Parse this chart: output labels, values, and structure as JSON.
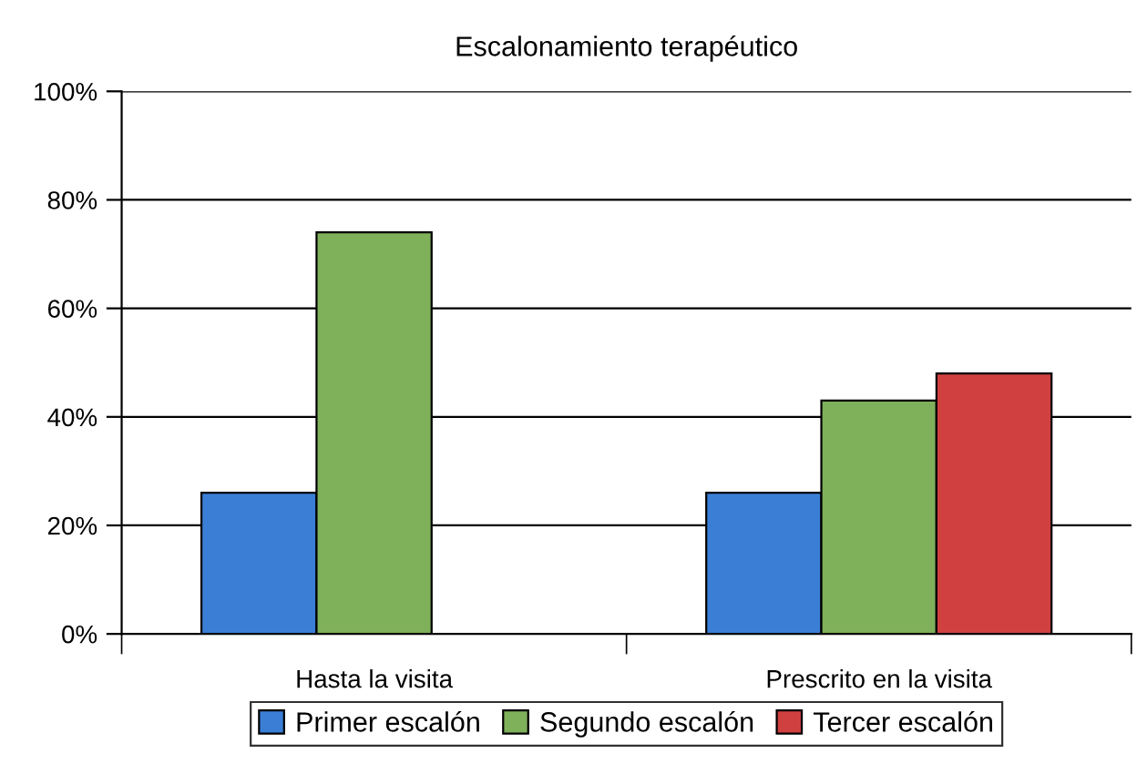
{
  "chart_data": {
    "type": "bar",
    "title": "Escalonamiento terapéutico",
    "categories": [
      "Hasta la visita",
      "Prescrito en la visita"
    ],
    "series": [
      {
        "name": "Primer escalón",
        "color": "#3a7fd5",
        "values": [
          26,
          26
        ]
      },
      {
        "name": "Segundo escalón",
        "color": "#7fb05a",
        "values": [
          74,
          43
        ]
      },
      {
        "name": "Tercer escalón",
        "color": "#d04040",
        "values": [
          null,
          48
        ]
      }
    ],
    "ylim": [
      0,
      100
    ],
    "yticks": [
      {
        "value": 0,
        "label": "0%"
      },
      {
        "value": 20,
        "label": "20%"
      },
      {
        "value": 40,
        "label": "40%"
      },
      {
        "value": 60,
        "label": "60%"
      },
      {
        "value": 80,
        "label": "80%"
      },
      {
        "value": 100,
        "label": "100%"
      }
    ],
    "grid": "y",
    "legend": "bottom"
  }
}
